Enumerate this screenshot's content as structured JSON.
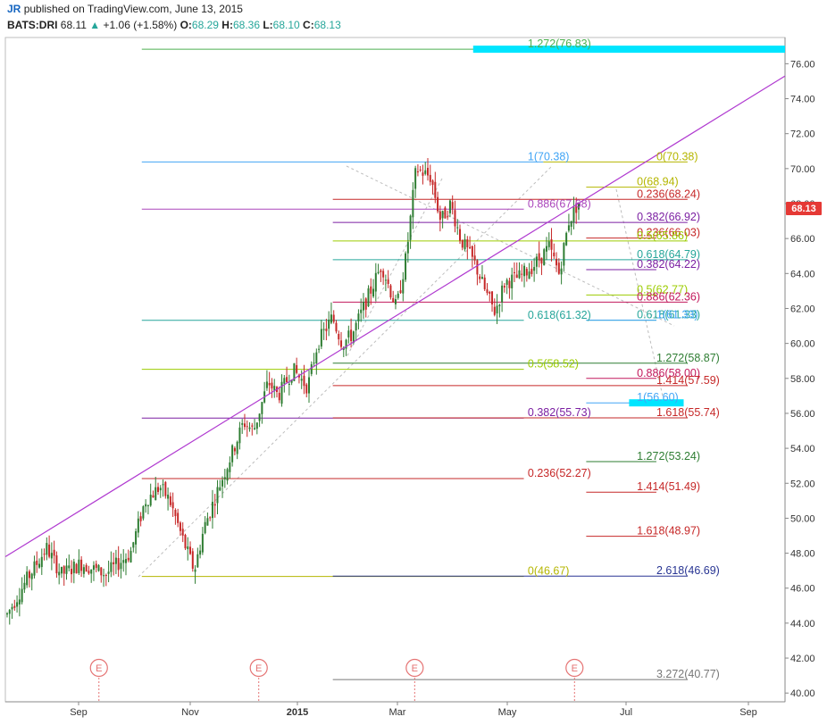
{
  "header": {
    "author": "JR",
    "published": "published on TradingView.com, June 13, 2015",
    "symbol": "BATS:DRI",
    "last": "68.11",
    "change_arrow": "▲",
    "change": "+1.06 (+1.58%)",
    "open_label": "O:",
    "open": "68.29",
    "high_label": "H:",
    "high": "68.36",
    "low_label": "L:",
    "low": "68.10",
    "close_label": "C:",
    "close": "68.13",
    "up_color": "#26a69a"
  },
  "price_badge": {
    "value": "68.13",
    "color": "#e53935"
  },
  "chart_data": {
    "type": "candlestick",
    "y_axis": {
      "min": 39.5,
      "max": 77.5,
      "ticks": [
        40,
        42,
        44,
        46,
        48,
        50,
        52,
        54,
        56,
        58,
        60,
        62,
        64,
        66,
        68,
        70,
        72,
        74,
        76
      ],
      "position": "right"
    },
    "x_axis": {
      "ticks": [
        {
          "label": "Sep",
          "bold": false
        },
        {
          "label": "Nov",
          "bold": false
        },
        {
          "label": "2015",
          "bold": true
        },
        {
          "label": "Mar",
          "bold": false
        },
        {
          "label": "May",
          "bold": false
        },
        {
          "label": "Jul",
          "bold": false
        },
        {
          "label": "Sep",
          "bold": false
        }
      ]
    },
    "grid": false,
    "candle_colors": {
      "up": "#2e7d32",
      "down": "#c62828"
    },
    "price_path": [
      [
        0,
        44.5
      ],
      [
        4,
        46.5
      ],
      [
        8,
        48.3
      ],
      [
        11,
        46.8
      ],
      [
        15,
        47.4
      ],
      [
        20,
        46.8
      ],
      [
        25,
        48.0
      ],
      [
        28,
        51.0
      ],
      [
        31,
        51.8
      ],
      [
        33,
        51.0
      ],
      [
        36,
        48.5
      ],
      [
        38,
        47.0
      ],
      [
        40,
        49.5
      ],
      [
        43,
        51.8
      ],
      [
        46,
        54.0
      ],
      [
        48,
        55.5
      ],
      [
        50,
        55.0
      ],
      [
        53,
        57.8
      ],
      [
        55,
        57.0
      ],
      [
        58,
        58.5
      ],
      [
        61,
        57.5
      ],
      [
        63,
        60.0
      ],
      [
        66,
        61.5
      ],
      [
        68,
        60.0
      ],
      [
        70,
        60.5
      ],
      [
        73,
        62.5
      ],
      [
        76,
        64.5
      ],
      [
        79,
        62.0
      ],
      [
        81,
        65.0
      ],
      [
        83,
        70.0
      ],
      [
        86,
        69.5
      ],
      [
        88,
        67.0
      ],
      [
        90,
        68.0
      ],
      [
        92,
        66.0
      ],
      [
        95,
        64.5
      ],
      [
        97,
        63.0
      ],
      [
        99,
        61.8
      ],
      [
        101,
        63.5
      ],
      [
        104,
        63.8
      ],
      [
        107,
        64.5
      ],
      [
        110,
        65.5
      ],
      [
        112,
        64.0
      ],
      [
        114,
        67.0
      ],
      [
        116,
        68.1
      ]
    ],
    "fib_levels": [
      {
        "label": "1.272(76.83)",
        "value": 76.83,
        "color": "#4caf50",
        "line": [
          0.175,
          0.95
        ],
        "text_x": 0.67
      },
      {
        "label": "1(70.38)",
        "value": 70.38,
        "color": "#42a5f5",
        "line": [
          0.175,
          0.69
        ],
        "text_x": 0.67
      },
      {
        "label": "0(70.38)",
        "value": 70.38,
        "color": "#b5b600",
        "line": [
          0.69,
          0.875
        ],
        "text_x": 0.835
      },
      {
        "label": "0(68.94)",
        "value": 68.94,
        "color": "#b5b600",
        "line": [
          0.745,
          0.835
        ],
        "text_x": 0.81
      },
      {
        "label": "0.236(68.24)",
        "value": 68.24,
        "color": "#c62828",
        "line": [
          0.42,
          0.875
        ],
        "text_x": 0.81
      },
      {
        "label": "0.886(67.68)",
        "value": 67.68,
        "color": "#ab47bc",
        "line": [
          0.175,
          0.665
        ],
        "text_x": 0.67
      },
      {
        "label": "0.382(66.92)",
        "value": 66.92,
        "color": "#7b1fa2",
        "line": [
          0.42,
          0.875
        ],
        "text_x": 0.81
      },
      {
        "label": "0.236(66.03)",
        "value": 66.03,
        "color": "#c62828",
        "line": [
          0.745,
          0.835
        ],
        "text_x": 0.81
      },
      {
        "label": "0.5(65.86)",
        "value": 65.86,
        "color": "#9ccc00",
        "line": [
          0.42,
          0.875
        ],
        "text_x": 0.81
      },
      {
        "label": "0.618(64.79)",
        "value": 64.79,
        "color": "#26a69a",
        "line": [
          0.42,
          0.875
        ],
        "text_x": 0.81
      },
      {
        "label": "0.382(64.22)",
        "value": 64.22,
        "color": "#7b1fa2",
        "line": [
          0.745,
          0.835
        ],
        "text_x": 0.81
      },
      {
        "label": "0.5(62.77)",
        "value": 62.77,
        "color": "#9ccc00",
        "line": [
          0.745,
          0.835
        ],
        "text_x": 0.81
      },
      {
        "label": "0.886(62.36)",
        "value": 62.36,
        "color": "#c2185b",
        "line": [
          0.42,
          0.875
        ],
        "text_x": 0.81
      },
      {
        "label": "0.618(61.32)",
        "value": 61.32,
        "color": "#26a69a",
        "line": [
          0.175,
          0.665
        ],
        "text_x": 0.67
      },
      {
        "label": "0.618(61.33)",
        "value": 61.33,
        "color": "#26a69a",
        "line": [
          0.745,
          0.835
        ],
        "text_x": 0.81
      },
      {
        "label": "1(61.33)",
        "value": 61.33,
        "color": "#42a5f5",
        "line": [
          0.745,
          0.835
        ],
        "text_x": 0.835
      },
      {
        "label": "1.272(58.87)",
        "value": 58.87,
        "color": "#2e7d32",
        "line": [
          0.42,
          0.875
        ],
        "text_x": 0.835
      },
      {
        "label": "0.5(58.52)",
        "value": 58.52,
        "color": "#9ccc00",
        "line": [
          0.175,
          0.665
        ],
        "text_x": 0.67
      },
      {
        "label": "0.886(58.00)",
        "value": 58.0,
        "color": "#c2185b",
        "line": [
          0.745,
          0.835
        ],
        "text_x": 0.81
      },
      {
        "label": "1.414(57.59)",
        "value": 57.59,
        "color": "#c62828",
        "line": [
          0.42,
          0.875
        ],
        "text_x": 0.835
      },
      {
        "label": "1(56.60)",
        "value": 56.6,
        "color": "#42a5f5",
        "line": [
          0.745,
          0.835
        ],
        "text_x": 0.81
      },
      {
        "label": "0.382(55.73)",
        "value": 55.73,
        "color": "#7b1fa2",
        "line": [
          0.175,
          0.665
        ],
        "text_x": 0.67
      },
      {
        "label": "1.618(55.74)",
        "value": 55.74,
        "color": "#c62828",
        "line": [
          0.42,
          0.875
        ],
        "text_x": 0.835
      },
      {
        "label": "1.272(53.24)",
        "value": 53.24,
        "color": "#2e7d32",
        "line": [
          0.745,
          0.835
        ],
        "text_x": 0.81
      },
      {
        "label": "0.236(52.27)",
        "value": 52.27,
        "color": "#c62828",
        "line": [
          0.175,
          0.665
        ],
        "text_x": 0.67
      },
      {
        "label": "1.414(51.49)",
        "value": 51.49,
        "color": "#c62828",
        "line": [
          0.745,
          0.835
        ],
        "text_x": 0.81
      },
      {
        "label": "1.618(48.97)",
        "value": 48.97,
        "color": "#c62828",
        "line": [
          0.745,
          0.835
        ],
        "text_x": 0.81
      },
      {
        "label": "0(46.67)",
        "value": 46.67,
        "color": "#b5b600",
        "line": [
          0.175,
          0.665
        ],
        "text_x": 0.67
      },
      {
        "label": "2.618(46.69)",
        "value": 46.69,
        "color": "#283593",
        "line": [
          0.42,
          0.875
        ],
        "text_x": 0.835
      },
      {
        "label": "3.272(40.77)",
        "value": 40.77,
        "color": "#777777",
        "line": [
          0.42,
          0.875
        ],
        "text_x": 0.835
      }
    ],
    "target_zones": [
      {
        "value": 76.83,
        "color": "#00e5ff",
        "span": [
          0.6,
          1.0
        ]
      },
      {
        "value": 56.6,
        "color": "#00e5ff",
        "span": [
          0.8,
          0.87
        ]
      }
    ],
    "trendline": {
      "color": "#b03ad0",
      "from": [
        0,
        47.8
      ],
      "to": [
        1,
        75.3
      ]
    },
    "earnings_markers": [
      {
        "label": "E",
        "x": 0.12
      },
      {
        "label": "E",
        "x": 0.325
      },
      {
        "label": "E",
        "x": 0.525
      },
      {
        "label": "E",
        "x": 0.73
      }
    ],
    "earnings_color": "#e57373"
  }
}
